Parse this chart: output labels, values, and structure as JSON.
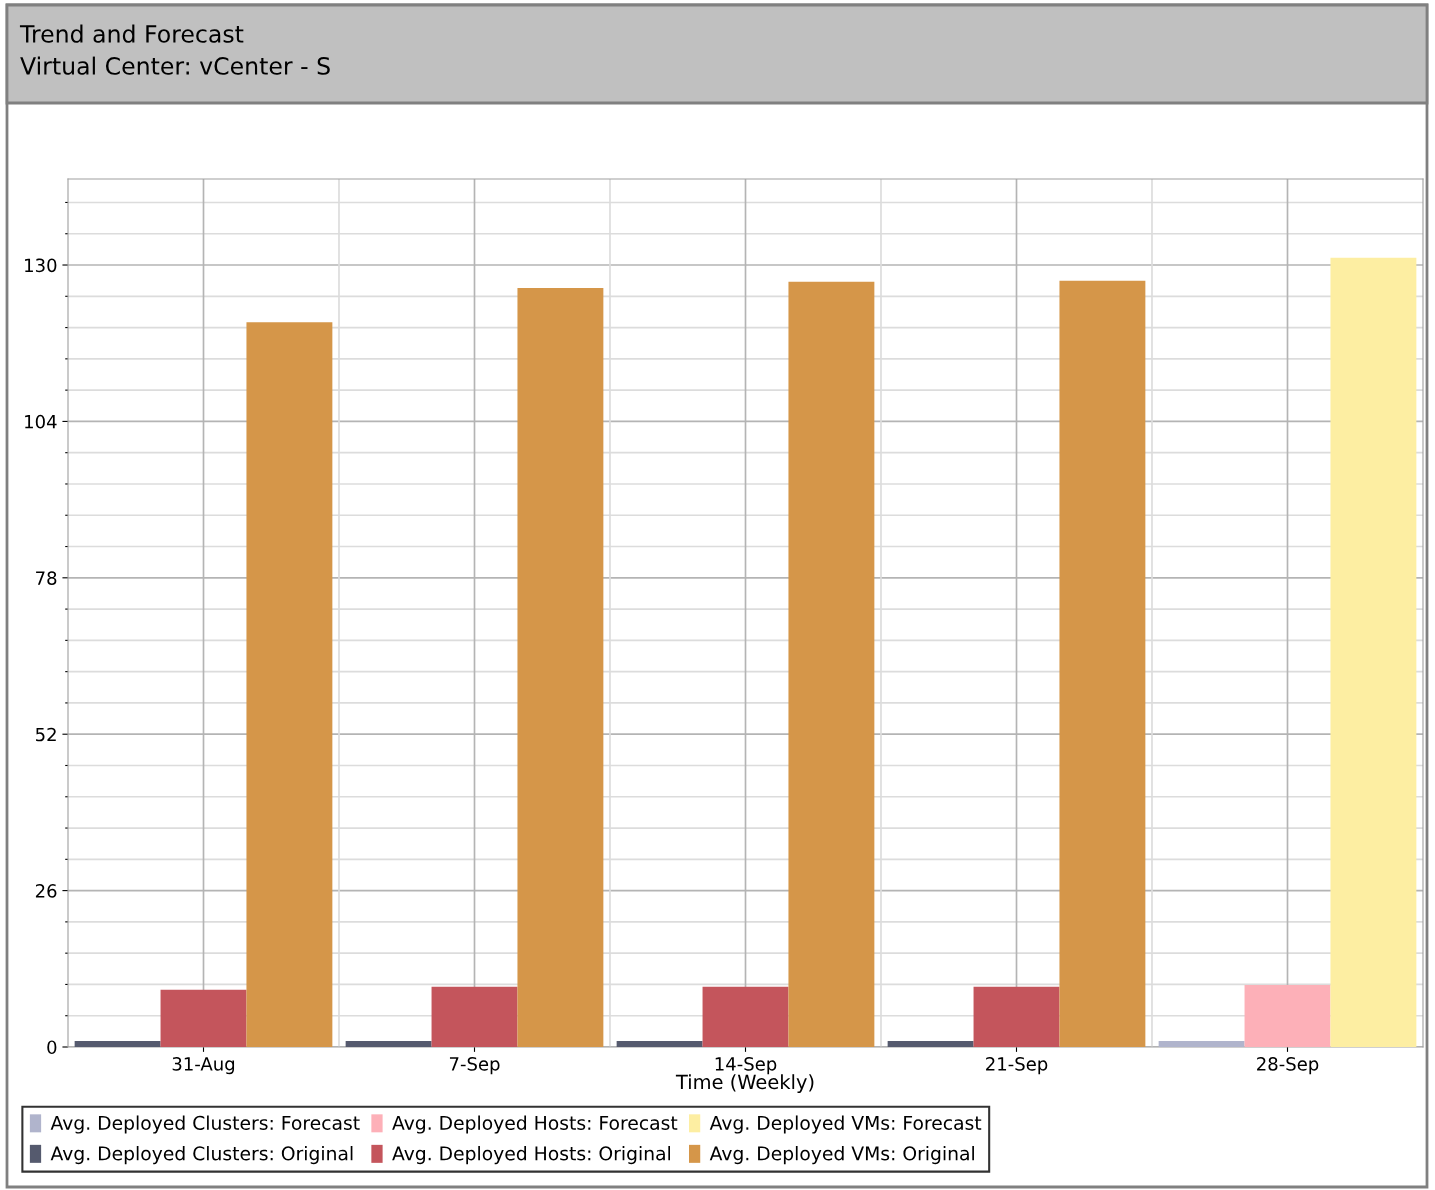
{
  "chart_data": {
    "type": "bar",
    "title": "Trend and Forecast",
    "subtitle": "Virtual Center: vCenter - S",
    "xlabel": "Time (Weekly)",
    "categories": [
      "31-Aug",
      "7-Sep",
      "14-Sep",
      "21-Sep",
      "28-Sep"
    ],
    "series": [
      {
        "name": "Avg. Deployed Clusters: Forecast",
        "color": "#b0b4cc",
        "values": [
          null,
          null,
          null,
          null,
          1
        ]
      },
      {
        "name": "Avg. Deployed Hosts: Forecast",
        "color": "#fdb0b8",
        "values": [
          null,
          null,
          null,
          null,
          10.3
        ]
      },
      {
        "name": "Avg. Deployed VMs: Forecast",
        "color": "#fdeea2",
        "values": [
          null,
          null,
          null,
          null,
          131.2
        ]
      },
      {
        "name": "Avg. Deployed Clusters: Original",
        "color": "#555a6e",
        "values": [
          1,
          1,
          1,
          1,
          null
        ]
      },
      {
        "name": "Avg. Deployed Hosts: Original",
        "color": "#c4555c",
        "values": [
          9.5,
          10,
          10,
          10,
          null
        ]
      },
      {
        "name": "Avg. Deployed VMs: Original",
        "color": "#d59649",
        "values": [
          120.5,
          126.2,
          127.2,
          127.4,
          null
        ]
      }
    ],
    "ylim": [
      0,
      144.3
    ],
    "yticks": [
      0,
      {
        "value": 5.2,
        "label": null
      },
      {
        "value": 10.4,
        "label": null
      },
      {
        "value": 15.6,
        "label": null
      },
      {
        "value": 20.8,
        "label": null
      },
      26,
      {
        "value": 31.2,
        "label": null
      },
      {
        "value": 36.4,
        "label": null
      },
      {
        "value": 41.6,
        "label": null
      },
      {
        "value": 46.8,
        "label": null
      },
      52,
      {
        "value": 57.2,
        "label": null
      },
      {
        "value": 62.4,
        "label": null
      },
      {
        "value": 67.6,
        "label": null
      },
      {
        "value": 72.8,
        "label": null
      },
      78,
      {
        "value": 83.2,
        "label": null
      },
      {
        "value": 88.4,
        "label": null
      },
      {
        "value": 93.6,
        "label": null
      },
      {
        "value": 98.8,
        "label": null
      },
      104,
      {
        "value": 109.2,
        "label": null
      },
      {
        "value": 114.4,
        "label": null
      },
      {
        "value": 119.6,
        "label": null
      },
      {
        "value": 124.8,
        "label": null
      },
      130,
      {
        "value": 135.2,
        "label": null
      },
      {
        "value": 140.4,
        "label": null
      }
    ],
    "grid": true,
    "legend": "bottom"
  }
}
